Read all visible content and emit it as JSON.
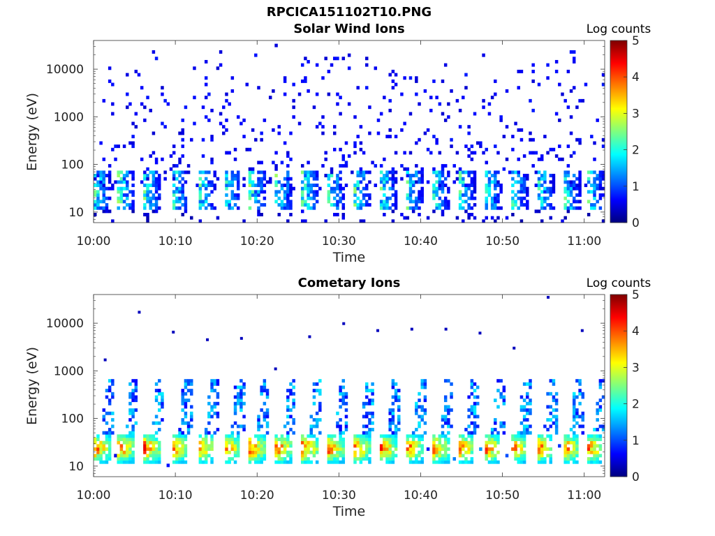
{
  "figure": {
    "title": "RPCICA151102T10.PNG"
  },
  "chart_data": [
    {
      "type": "heatmap",
      "title": "Solar Wind Ions",
      "xlabel": "Time",
      "ylabel": "Energy (eV)",
      "x_tick_labels": [
        "10:00",
        "10:10",
        "10:20",
        "10:30",
        "10:40",
        "10:50",
        "11:00"
      ],
      "x_ticks_min": [
        0,
        10,
        20,
        30,
        40,
        50,
        60
      ],
      "xlim_min": [
        0,
        62.5
      ],
      "y_scale": "log",
      "y_tick_labels": [
        "10",
        "100",
        "1000",
        "10000"
      ],
      "y_ticks": [
        10,
        100,
        1000,
        10000
      ],
      "ylim": [
        6,
        40000
      ],
      "colorbar": {
        "label": "Log counts",
        "min": 0,
        "max": 5,
        "ticks": [
          "0",
          "1",
          "2",
          "3",
          "4",
          "5"
        ],
        "colormap": "jet"
      },
      "pattern": {
        "bursts_start_min": [
          0,
          3,
          6.2,
          9.5,
          12.8,
          15.9,
          19.1,
          22.3,
          25.5,
          28.6,
          31.8,
          35,
          38.2,
          41.4,
          44.6,
          47.8,
          51,
          54.2,
          57.4,
          60.3
        ],
        "burst_peak_log_counts": 2.5,
        "burst_energy_range_eV": [
          12,
          80
        ],
        "background_energy_range_eV": [
          30,
          35000
        ],
        "background_log_counts": 0.4
      }
    },
    {
      "type": "heatmap",
      "title": "Cometary Ions",
      "xlabel": "Time",
      "ylabel": "Energy (eV)",
      "x_tick_labels": [
        "10:00",
        "10:10",
        "10:20",
        "10:30",
        "10:40",
        "10:50",
        "11:00"
      ],
      "x_ticks_min": [
        0,
        10,
        20,
        30,
        40,
        50,
        60
      ],
      "xlim_min": [
        0,
        62.5
      ],
      "y_scale": "log",
      "y_tick_labels": [
        "10",
        "100",
        "1000",
        "10000"
      ],
      "y_ticks": [
        10,
        100,
        1000,
        10000
      ],
      "ylim": [
        6,
        40000
      ],
      "colorbar": {
        "label": "Log counts",
        "min": 0,
        "max": 5,
        "ticks": [
          "0",
          "1",
          "2",
          "3",
          "4",
          "5"
        ],
        "colormap": "jet"
      },
      "pattern": {
        "bursts_start_min": [
          0,
          3,
          6.2,
          9.5,
          12.8,
          15.9,
          19.1,
          22.3,
          25.5,
          28.6,
          31.8,
          35,
          38.2,
          41.4,
          44.6,
          47.8,
          51,
          54.2,
          57.4,
          60.3
        ],
        "core_energy_range_eV": [
          12,
          45
        ],
        "core_peak_log_counts": 3.5,
        "tail_max_energy_eV": 700,
        "tail_log_counts": 1.2,
        "sparse_high_energy_points_eV": [
          1700,
          17000,
          6500,
          4500,
          4800,
          1100,
          5200,
          9800,
          7000,
          7500,
          7500,
          6200,
          3000,
          35000,
          7000
        ]
      }
    }
  ]
}
